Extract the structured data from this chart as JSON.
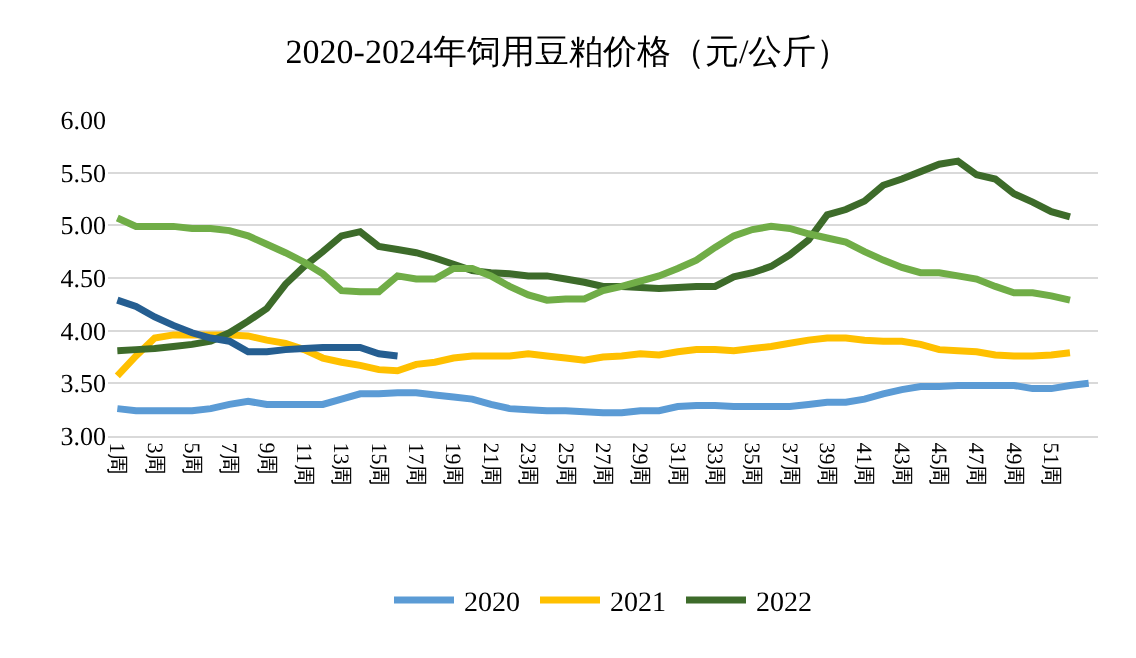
{
  "chart_data": {
    "type": "line",
    "title": "2020-2024年饲用豆粕价格（元/公斤）",
    "categories": [
      "1周",
      null,
      "3周",
      null,
      "5周",
      null,
      "7周",
      null,
      "9周",
      null,
      "11周",
      null,
      "13周",
      null,
      "15周",
      null,
      "17周",
      null,
      "19周",
      null,
      "21周",
      null,
      "23周",
      null,
      "25周",
      null,
      "27周",
      null,
      "29周",
      null,
      "31周",
      null,
      "33周",
      null,
      "35周",
      null,
      "37周",
      null,
      "39周",
      null,
      "41周",
      null,
      "43周",
      null,
      "45周",
      null,
      "47周",
      null,
      "49周",
      null,
      "51周",
      null,
      null
    ],
    "series": [
      {
        "name": "2020",
        "color": "#5b9bd5",
        "values": [
          3.26,
          3.24,
          3.24,
          3.24,
          3.24,
          3.26,
          3.3,
          3.33,
          3.3,
          3.3,
          3.3,
          3.3,
          3.35,
          3.4,
          3.4,
          3.41,
          3.41,
          3.39,
          3.37,
          3.35,
          3.3,
          3.26,
          3.25,
          3.24,
          3.24,
          3.23,
          3.22,
          3.22,
          3.24,
          3.24,
          3.28,
          3.29,
          3.29,
          3.28,
          3.28,
          3.28,
          3.28,
          3.3,
          3.32,
          3.32,
          3.35,
          3.4,
          3.44,
          3.47,
          3.47,
          3.48,
          3.48,
          3.48,
          3.48,
          3.45,
          3.45,
          3.48,
          3.5
        ]
      },
      {
        "name": "2021",
        "color": "#ffc000",
        "values": [
          3.57,
          3.76,
          3.93,
          3.96,
          3.96,
          3.96,
          3.96,
          3.95,
          3.91,
          3.88,
          3.82,
          3.74,
          3.7,
          3.67,
          3.63,
          3.62,
          3.68,
          3.7,
          3.74,
          3.76,
          3.76,
          3.76,
          3.78,
          3.76,
          3.74,
          3.72,
          3.75,
          3.76,
          3.78,
          3.77,
          3.8,
          3.82,
          3.82,
          3.81,
          3.83,
          3.85,
          3.88,
          3.91,
          3.93,
          3.93,
          3.91,
          3.9,
          3.9,
          3.87,
          3.82,
          3.81,
          3.8,
          3.77,
          3.76,
          3.76,
          3.77,
          3.79,
          null
        ]
      },
      {
        "name": "2022",
        "color": "#3d6b2a",
        "values": [
          3.81,
          3.82,
          3.83,
          3.85,
          3.87,
          3.9,
          3.98,
          4.09,
          4.21,
          4.44,
          4.61,
          4.75,
          4.9,
          4.94,
          4.8,
          4.77,
          4.74,
          4.69,
          4.63,
          4.57,
          4.55,
          4.54,
          4.52,
          4.52,
          4.49,
          4.46,
          4.42,
          4.42,
          4.41,
          4.4,
          4.41,
          4.42,
          4.42,
          4.51,
          4.55,
          4.61,
          4.72,
          4.86,
          5.1,
          5.15,
          5.23,
          5.38,
          5.44,
          5.51,
          5.58,
          5.61,
          5.48,
          5.44,
          5.3,
          5.22,
          5.13,
          5.08,
          null
        ]
      },
      {
        "color": "#70ad47",
        "values": [
          5.07,
          4.99,
          4.99,
          4.99,
          4.97,
          4.97,
          4.95,
          4.9,
          4.82,
          4.74,
          4.65,
          4.54,
          4.38,
          4.37,
          4.37,
          4.52,
          4.49,
          4.49,
          4.59,
          4.59,
          4.52,
          4.42,
          4.34,
          4.29,
          4.3,
          4.3,
          4.38,
          4.42,
          4.47,
          4.52,
          4.59,
          4.67,
          4.79,
          4.9,
          4.96,
          4.99,
          4.97,
          4.92,
          4.88,
          4.84,
          4.75,
          4.67,
          4.6,
          4.55,
          4.55,
          4.52,
          4.49,
          4.42,
          4.36,
          4.36,
          4.33,
          4.29,
          null
        ]
      },
      {
        "color": "#255e91",
        "values": [
          4.29,
          4.23,
          4.13,
          4.05,
          3.98,
          3.93,
          3.9,
          3.8,
          3.8,
          3.82,
          3.83,
          3.84,
          3.84,
          3.84,
          3.78,
          3.76,
          null,
          null,
          null,
          null,
          null,
          null,
          null,
          null,
          null,
          null,
          null,
          null,
          null,
          null,
          null,
          null,
          null,
          null,
          null,
          null,
          null,
          null,
          null,
          null,
          null,
          null,
          null,
          null,
          null,
          null,
          null,
          null,
          null,
          null,
          null,
          null,
          null
        ]
      }
    ],
    "ylim": [
      3.0,
      6.0
    ],
    "yticks": [
      {
        "value": 3.0,
        "label": "3.00"
      },
      {
        "value": 3.5,
        "label": "3.50"
      },
      {
        "value": 4.0,
        "label": "4.00"
      },
      {
        "value": 4.5,
        "label": "4.50"
      },
      {
        "value": 5.0,
        "label": "5.00"
      },
      {
        "value": 5.5,
        "label": "5.50"
      },
      {
        "value": 6.0,
        "label": "6.00"
      }
    ],
    "grid": "y",
    "legend": "bottom",
    "marker": "none",
    "line_style": "solid"
  }
}
